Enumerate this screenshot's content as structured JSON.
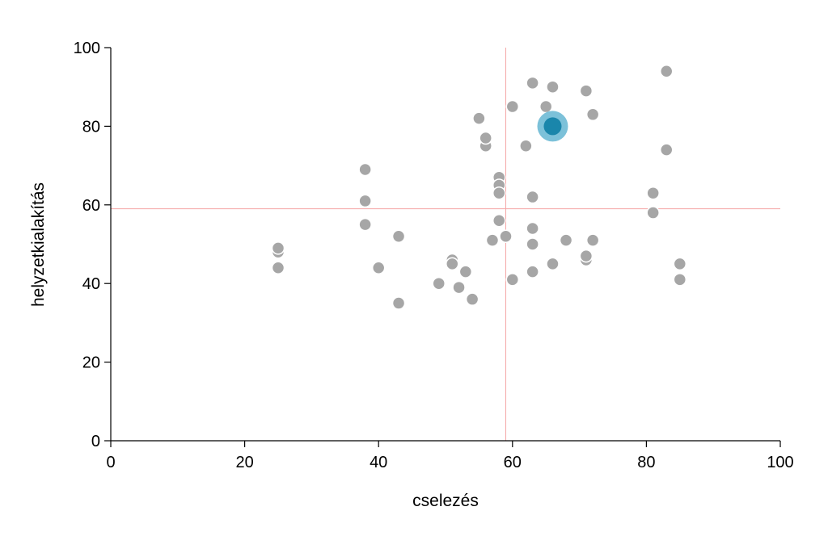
{
  "chart_data": {
    "type": "scatter",
    "title": "",
    "xlabel": "cselezés",
    "ylabel": "helyzetkialakítás",
    "xlim": [
      0,
      100
    ],
    "ylim": [
      0,
      100
    ],
    "xticks": [
      0,
      20,
      40,
      60,
      80,
      100
    ],
    "yticks": [
      0,
      20,
      40,
      60,
      80,
      100
    ],
    "grid": false,
    "reference_lines": {
      "x": 59,
      "y": 59,
      "color": "#f4a6a6"
    },
    "point_color": "#a6a6a6",
    "highlight_color": "#1a86ab",
    "highlight_halo_color": "#7cc1d9",
    "points": [
      {
        "x": 25,
        "y": 48
      },
      {
        "x": 25,
        "y": 49
      },
      {
        "x": 25,
        "y": 44
      },
      {
        "x": 38,
        "y": 69
      },
      {
        "x": 38,
        "y": 61
      },
      {
        "x": 38,
        "y": 55
      },
      {
        "x": 40,
        "y": 44
      },
      {
        "x": 43,
        "y": 52
      },
      {
        "x": 43,
        "y": 35
      },
      {
        "x": 49,
        "y": 40
      },
      {
        "x": 51,
        "y": 46
      },
      {
        "x": 51,
        "y": 45
      },
      {
        "x": 52,
        "y": 39
      },
      {
        "x": 53,
        "y": 43
      },
      {
        "x": 54,
        "y": 36
      },
      {
        "x": 55,
        "y": 82
      },
      {
        "x": 56,
        "y": 75
      },
      {
        "x": 56,
        "y": 77
      },
      {
        "x": 57,
        "y": 51
      },
      {
        "x": 58,
        "y": 67
      },
      {
        "x": 58,
        "y": 65
      },
      {
        "x": 58,
        "y": 63
      },
      {
        "x": 58,
        "y": 56
      },
      {
        "x": 59,
        "y": 52
      },
      {
        "x": 60,
        "y": 85
      },
      {
        "x": 60,
        "y": 41
      },
      {
        "x": 62,
        "y": 75
      },
      {
        "x": 63,
        "y": 91
      },
      {
        "x": 63,
        "y": 62
      },
      {
        "x": 63,
        "y": 54
      },
      {
        "x": 63,
        "y": 50
      },
      {
        "x": 63,
        "y": 43
      },
      {
        "x": 65,
        "y": 85
      },
      {
        "x": 66,
        "y": 90
      },
      {
        "x": 66,
        "y": 45
      },
      {
        "x": 68,
        "y": 51
      },
      {
        "x": 71,
        "y": 89
      },
      {
        "x": 71,
        "y": 46
      },
      {
        "x": 71,
        "y": 47
      },
      {
        "x": 72,
        "y": 83
      },
      {
        "x": 72,
        "y": 51
      },
      {
        "x": 81,
        "y": 63
      },
      {
        "x": 81,
        "y": 58
      },
      {
        "x": 83,
        "y": 94
      },
      {
        "x": 83,
        "y": 74
      },
      {
        "x": 85,
        "y": 45
      },
      {
        "x": 85,
        "y": 41
      }
    ],
    "highlight": {
      "x": 66,
      "y": 80
    }
  }
}
